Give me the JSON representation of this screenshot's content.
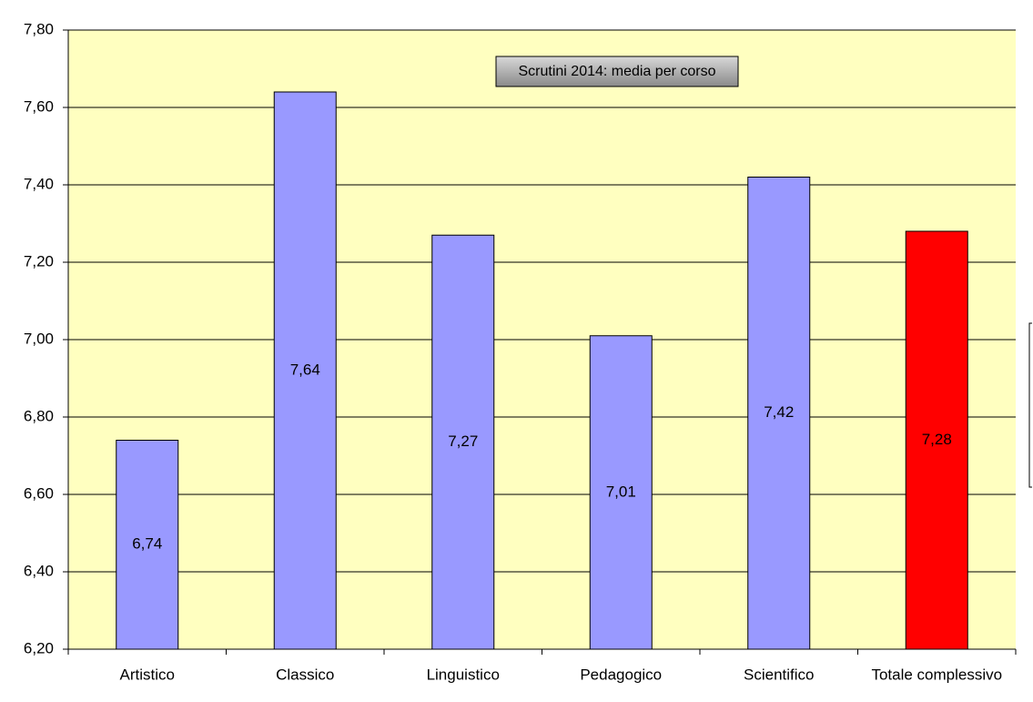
{
  "chart_data": {
    "type": "bar",
    "title": "Scrutini 2014: media per corso",
    "categories": [
      "Artistico",
      "Classico",
      "Linguistico",
      "Pedagogico",
      "Scientifico",
      "Totale complessivo"
    ],
    "values": [
      6.74,
      7.64,
      7.27,
      7.01,
      7.42,
      7.28
    ],
    "value_labels": [
      "6,74",
      "7,64",
      "7,27",
      "7,01",
      "7,42",
      "7,28"
    ],
    "colors": [
      "#9999ff",
      "#9999ff",
      "#9999ff",
      "#9999ff",
      "#9999ff",
      "#ff0000"
    ],
    "ylim": [
      6.2,
      7.8
    ],
    "yticks": [
      {
        "value": 6.2,
        "label": "6,20"
      },
      {
        "value": 6.4,
        "label": "6,40"
      },
      {
        "value": 6.6,
        "label": "6,60"
      },
      {
        "value": 6.8,
        "label": "6,80"
      },
      {
        "value": 7.0,
        "label": "7,00"
      },
      {
        "value": 7.2,
        "label": "7,20"
      },
      {
        "value": 7.4,
        "label": "7,40"
      },
      {
        "value": 7.6,
        "label": "7,60"
      },
      {
        "value": 7.8,
        "label": "7,80"
      }
    ],
    "grid": true
  }
}
